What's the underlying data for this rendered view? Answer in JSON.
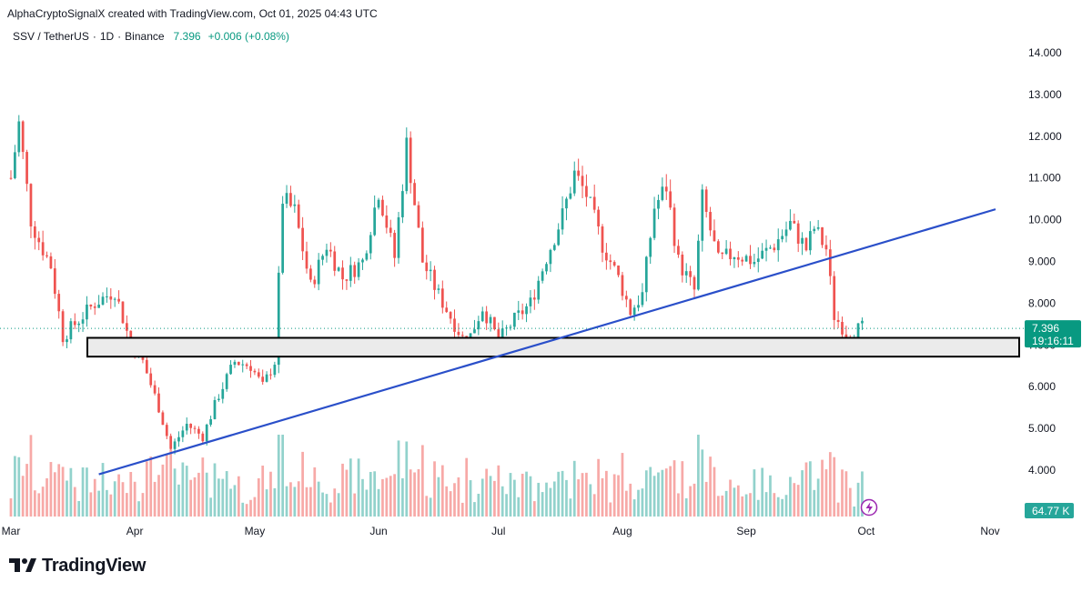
{
  "header": {
    "credit": "AlphaCryptoSignalX created with TradingView.com, Oct 01, 2025 04:43 UTC",
    "symbol": "SSV / TetherUS",
    "interval": "1D",
    "exchange": "Binance",
    "last_price": "7.396",
    "change": "+0.006 (+0.08%)",
    "separator": "·"
  },
  "price_label": {
    "value": "7.396",
    "countdown": "19:16:11"
  },
  "volume_label": "64.77 K",
  "footer": {
    "brand": "TradingView"
  },
  "colors": {
    "up": "#26a69a",
    "down": "#ef5350",
    "trendline": "#2a4fc9",
    "accent": "#089981"
  },
  "chart_data": {
    "type": "candlestick",
    "y_ticks": [
      "14.000",
      "13.000",
      "12.000",
      "11.000",
      "10.000",
      "9.000",
      "8.000",
      "7.000",
      "6.000",
      "5.000",
      "4.000"
    ],
    "ylim": [
      3.2,
      14.6
    ],
    "x_months": [
      "Mar",
      "Apr",
      "May",
      "Jun",
      "Jul",
      "Aug",
      "Sep",
      "Oct",
      "Nov"
    ],
    "date_range": [
      "2025-03-01",
      "2025-11-01"
    ],
    "support_zone": [
      6.72,
      7.17
    ],
    "trendline": {
      "from": [
        "2025-03-23",
        3.9
      ],
      "to": [
        "2025-11-01",
        10.25
      ]
    },
    "approx_path": [
      [
        "2025-03-01",
        11.0
      ],
      [
        "2025-03-03",
        12.3
      ],
      [
        "2025-03-06",
        10.0
      ],
      [
        "2025-03-08",
        9.5
      ],
      [
        "2025-03-11",
        8.9
      ],
      [
        "2025-03-14",
        7.2
      ],
      [
        "2025-03-18",
        7.6
      ],
      [
        "2025-03-22",
        8.0
      ],
      [
        "2025-03-27",
        8.3
      ],
      [
        "2025-03-31",
        7.0
      ],
      [
        "2025-04-03",
        6.6
      ],
      [
        "2025-04-07",
        5.5
      ],
      [
        "2025-04-10",
        4.5
      ],
      [
        "2025-04-14",
        5.1
      ],
      [
        "2025-04-18",
        4.8
      ],
      [
        "2025-04-22",
        5.8
      ],
      [
        "2025-04-26",
        6.6
      ],
      [
        "2025-04-30",
        6.5
      ],
      [
        "2025-05-03",
        6.0
      ],
      [
        "2025-05-06",
        6.6
      ],
      [
        "2025-05-08",
        10.5
      ],
      [
        "2025-05-11",
        10.2
      ],
      [
        "2025-05-15",
        8.4
      ],
      [
        "2025-05-19",
        9.4
      ],
      [
        "2025-05-23",
        8.6
      ],
      [
        "2025-05-28",
        9.0
      ],
      [
        "2025-06-01",
        10.7
      ],
      [
        "2025-06-05",
        9.1
      ],
      [
        "2025-06-08",
        11.8
      ],
      [
        "2025-06-12",
        9.0
      ],
      [
        "2025-06-16",
        8.2
      ],
      [
        "2025-06-20",
        7.5
      ],
      [
        "2025-06-23",
        7.0
      ],
      [
        "2025-06-27",
        7.9
      ],
      [
        "2025-07-01",
        7.1
      ],
      [
        "2025-07-05",
        7.6
      ],
      [
        "2025-07-09",
        8.0
      ],
      [
        "2025-07-13",
        9.1
      ],
      [
        "2025-07-17",
        10.1
      ],
      [
        "2025-07-20",
        11.1
      ],
      [
        "2025-07-23",
        10.6
      ],
      [
        "2025-07-27",
        9.4
      ],
      [
        "2025-07-31",
        8.6
      ],
      [
        "2025-08-03",
        7.8
      ],
      [
        "2025-08-06",
        8.2
      ],
      [
        "2025-08-09",
        10.3
      ],
      [
        "2025-08-12",
        10.8
      ],
      [
        "2025-08-15",
        9.0
      ],
      [
        "2025-08-19",
        8.3
      ],
      [
        "2025-08-21",
        10.5
      ],
      [
        "2025-08-25",
        9.0
      ],
      [
        "2025-08-29",
        9.2
      ],
      [
        "2025-09-03",
        9.0
      ],
      [
        "2025-09-08",
        9.4
      ],
      [
        "2025-09-12",
        9.9
      ],
      [
        "2025-09-16",
        9.3
      ],
      [
        "2025-09-18",
        9.8
      ],
      [
        "2025-09-21",
        9.3
      ],
      [
        "2025-09-23",
        7.7
      ],
      [
        "2025-09-26",
        7.3
      ],
      [
        "2025-09-30",
        7.4
      ]
    ]
  }
}
